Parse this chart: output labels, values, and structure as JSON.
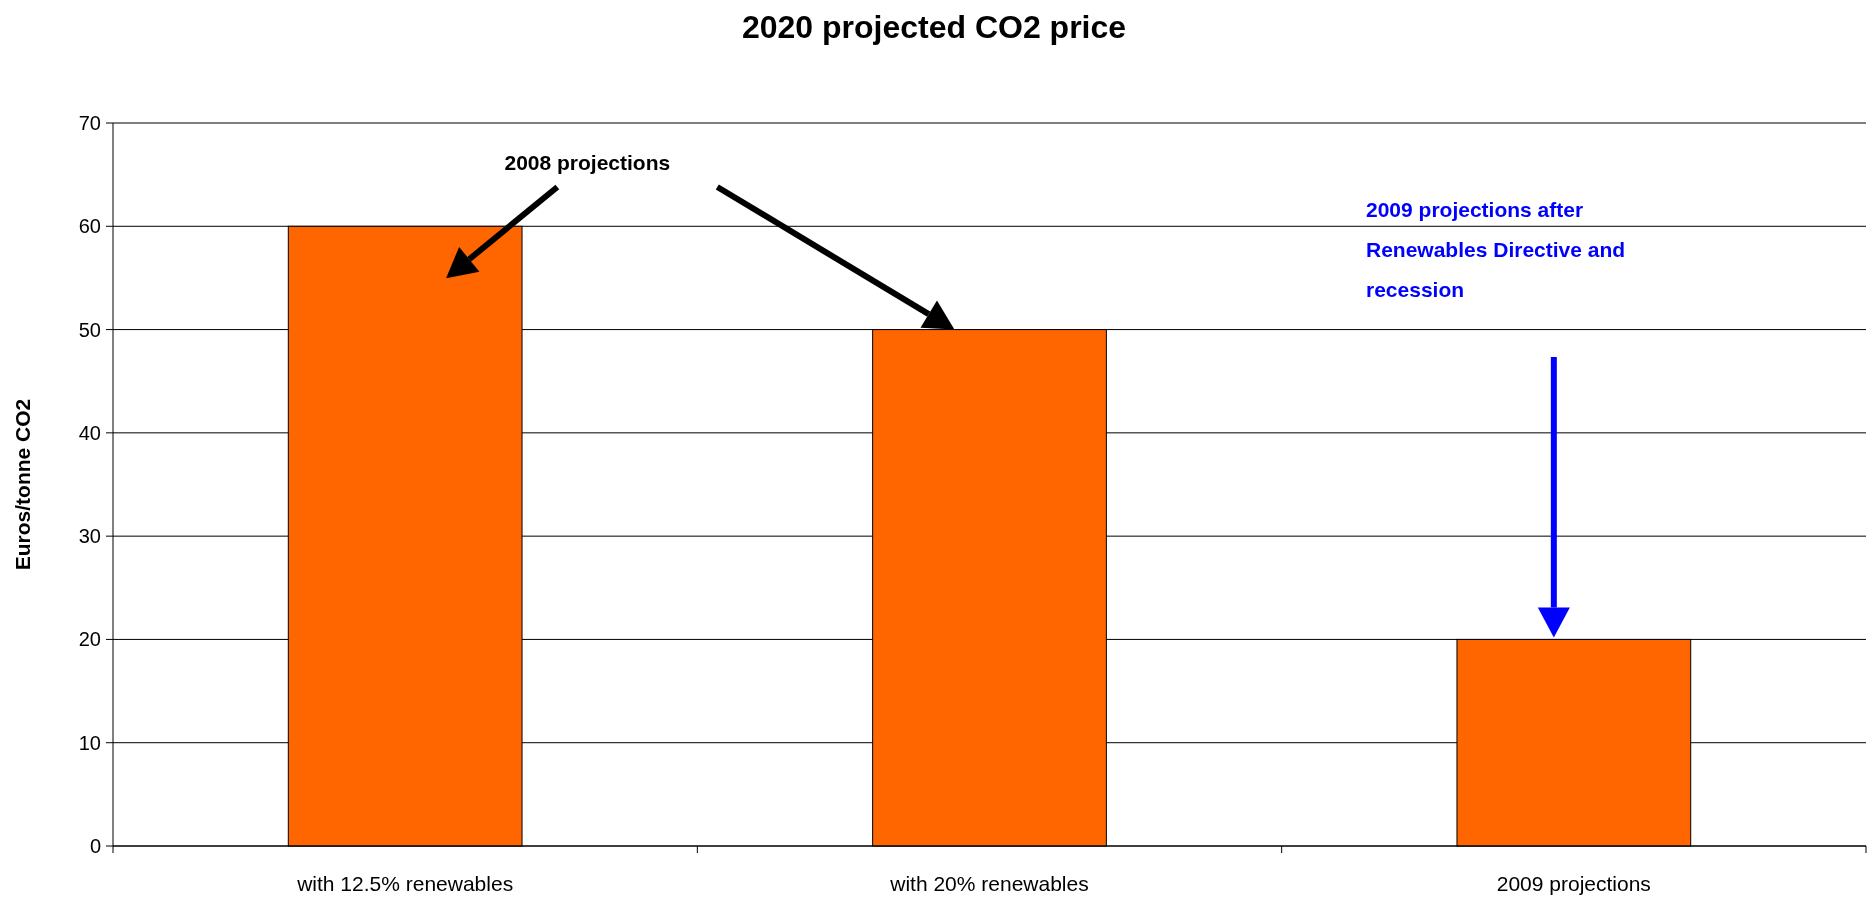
{
  "chart_data": {
    "type": "bar",
    "title": "2020 projected CO2 price",
    "ylabel": "Euros/tonne CO2",
    "categories": [
      "with 12.5% renewables",
      "with 20% renewables",
      "2009 projections"
    ],
    "values": [
      60,
      50,
      20
    ],
    "color": "#ff6600",
    "ylim": [
      0,
      70
    ],
    "yticks": [
      0,
      10,
      20,
      30,
      40,
      50,
      60,
      70
    ],
    "grid": "y",
    "annotations": [
      "2008 projections",
      "2009 projections after Renewables Directive and recession"
    ]
  }
}
